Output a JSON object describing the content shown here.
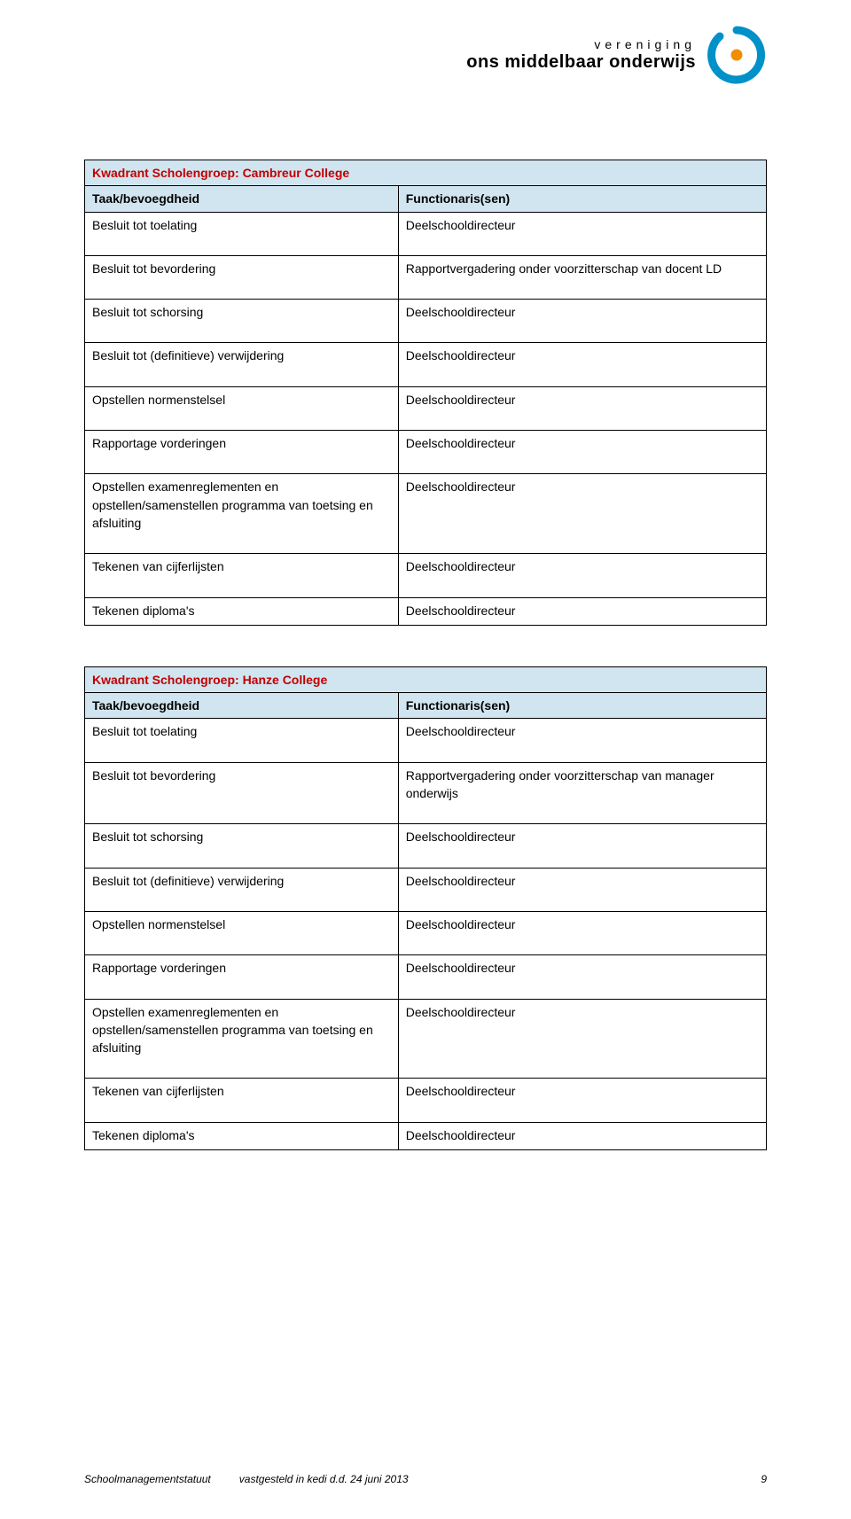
{
  "header": {
    "small": "vereniging",
    "big": "ons middelbaar onderwijs",
    "logo_colors": {
      "ring": "#0091c9",
      "dot": "#f18e00"
    }
  },
  "table1": {
    "title": "Kwadrant Scholengroep: Cambreur College",
    "head_left": "Taak/bevoegdheid",
    "head_right": "Functionaris(sen)",
    "rows": [
      {
        "left": "Besluit tot toelating",
        "right": "Deelschooldirecteur"
      },
      {
        "left": "Besluit tot bevordering",
        "right": "Rapportvergadering onder voorzitterschap van docent LD"
      },
      {
        "left": "Besluit tot schorsing",
        "right": "Deelschooldirecteur"
      },
      {
        "left": "Besluit tot (definitieve) verwijdering",
        "right": "Deelschooldirecteur"
      },
      {
        "left": "Opstellen normenstelsel",
        "right": "Deelschooldirecteur"
      },
      {
        "left": "Rapportage vorderingen",
        "right": "Deelschooldirecteur"
      },
      {
        "left": "Opstellen examenreglementen en opstellen/samenstellen programma van toetsing en afsluiting",
        "right": "Deelschooldirecteur"
      },
      {
        "left": "Tekenen van cijferlijsten",
        "right": "Deelschooldirecteur"
      },
      {
        "left": "Tekenen diploma's",
        "right": "Deelschooldirecteur"
      }
    ]
  },
  "table2": {
    "title": "Kwadrant Scholengroep: Hanze College",
    "head_left": "Taak/bevoegdheid",
    "head_right": "Functionaris(sen)",
    "rows": [
      {
        "left": "Besluit tot toelating",
        "right": "Deelschooldirecteur"
      },
      {
        "left": "Besluit tot bevordering",
        "right": "Rapportvergadering onder voorzitterschap van manager onderwijs"
      },
      {
        "left": "Besluit tot schorsing",
        "right": "Deelschooldirecteur"
      },
      {
        "left": "Besluit tot (definitieve) verwijdering",
        "right": "Deelschooldirecteur"
      },
      {
        "left": "Opstellen normenstelsel",
        "right": "Deelschooldirecteur"
      },
      {
        "left": "Rapportage vorderingen",
        "right": "Deelschooldirecteur"
      },
      {
        "left": "Opstellen examenreglementen en opstellen/samenstellen programma van toetsing en afsluiting",
        "right": "Deelschooldirecteur"
      },
      {
        "left": "Tekenen van cijferlijsten",
        "right": "Deelschooldirecteur"
      },
      {
        "left": "Tekenen diploma's",
        "right": "Deelschooldirecteur"
      }
    ]
  },
  "footer": {
    "doc_title": "Schoolmanagementstatuut",
    "status": "vastgesteld in kedi d.d. 24 juni 2013",
    "page": "9"
  },
  "colors": {
    "table_header_bg": "#d1e5f0",
    "title_text": "#c00000",
    "border": "#000000"
  }
}
